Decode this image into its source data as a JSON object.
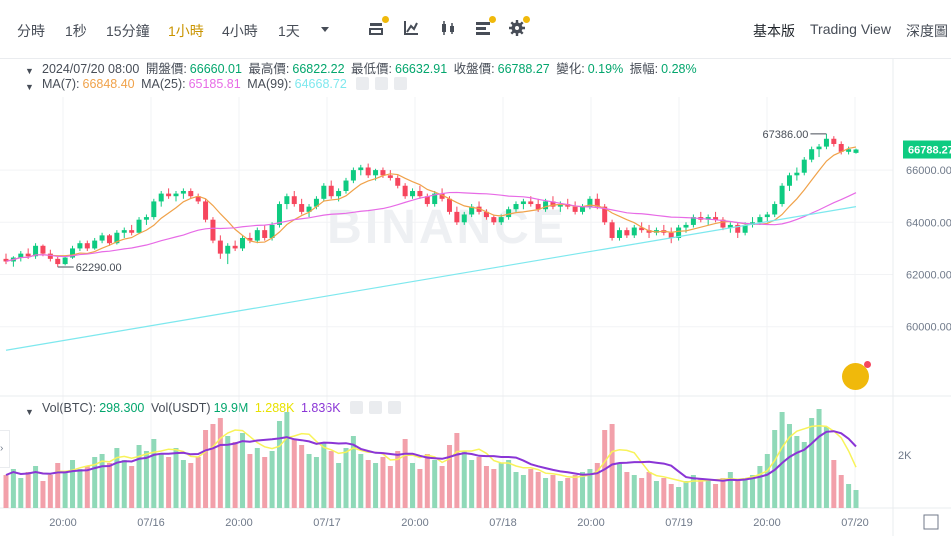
{
  "toolbar": {
    "intervals": [
      "分時",
      "1秒",
      "15分鐘",
      "1小時",
      "4小時",
      "1天"
    ],
    "active_interval": "1小時",
    "more_icon": "chevron-down-icon",
    "tools": [
      "indicator-icon",
      "line-chart-icon",
      "candle-icon",
      "settings-list-icon",
      "gear-icon"
    ],
    "views": [
      "基本版",
      "Trading View",
      "深度圖"
    ],
    "accent": "#f0b90b"
  },
  "ohlc": {
    "date": "2024/07/20 08:00",
    "open_label": "開盤價:",
    "open": "66660.01",
    "high_label": "最高價:",
    "high": "66822.22",
    "low_label": "最低價:",
    "low": "66632.91",
    "close_label": "收盤價:",
    "close": "66788.27",
    "change_label": "變化:",
    "change": "0.19%",
    "amp_label": "振幅:",
    "amp": "0.28%"
  },
  "ma": {
    "ma7_label": "MA(7):",
    "ma7": "66848.40",
    "ma25_label": "MA(25):",
    "ma25": "65185.81",
    "ma99_label": "MA(99):",
    "ma99": "64668.72"
  },
  "vol": {
    "btc_label": "Vol(BTC):",
    "btc": "298.300",
    "usdt_label": "Vol(USDT)",
    "usdt": "19.9M",
    "ma1": "1.288K",
    "ma2": "1.836K"
  },
  "watermark": "BINANCE",
  "colors": {
    "up": "#0ecb81",
    "down": "#f6465d",
    "ma7": "#f0a24a",
    "ma25": "#e76be6",
    "ma99": "#7ee8ee",
    "vol_ma1": "#f8f35a",
    "vol_ma2": "#8a35d6"
  },
  "chart_data": {
    "type": "candlestick",
    "price_axis": {
      "ticks": [
        60000,
        62000,
        64000,
        66000
      ],
      "tick_labels": [
        "60000.00",
        "62000.00",
        "64000.00",
        "66000.00"
      ],
      "range": [
        57500,
        68800
      ]
    },
    "time_axis": {
      "labels": [
        "20:00",
        "07/16",
        "20:00",
        "07/17",
        "20:00",
        "07/18",
        "20:00",
        "07/19",
        "20:00",
        "07/20"
      ]
    },
    "last_price": "66788.27",
    "high_marker": "67386.00",
    "low_marker": "62290.00",
    "candles": [
      [
        62600,
        62800,
        62400,
        62500
      ],
      [
        62500,
        62700,
        62300,
        62650
      ],
      [
        62650,
        62900,
        62500,
        62800
      ],
      [
        62800,
        63000,
        62600,
        62700
      ],
      [
        62700,
        63200,
        62600,
        63100
      ],
      [
        63100,
        63150,
        62700,
        62800
      ],
      [
        62800,
        62950,
        62500,
        62600
      ],
      [
        62600,
        62700,
        62290,
        62400
      ],
      [
        62400,
        62700,
        62350,
        62650
      ],
      [
        62650,
        63100,
        62600,
        63000
      ],
      [
        63000,
        63300,
        62900,
        63200
      ],
      [
        63200,
        63300,
        62900,
        63000
      ],
      [
        63000,
        63400,
        62950,
        63300
      ],
      [
        63300,
        63600,
        63200,
        63500
      ],
      [
        63500,
        63550,
        63100,
        63200
      ],
      [
        63200,
        63700,
        63150,
        63600
      ],
      [
        63600,
        63800,
        63400,
        63700
      ],
      [
        63700,
        63900,
        63500,
        63600
      ],
      [
        63600,
        64200,
        63550,
        64100
      ],
      [
        64100,
        64300,
        63900,
        64200
      ],
      [
        64200,
        64900,
        64100,
        64800
      ],
      [
        64800,
        65200,
        64600,
        65100
      ],
      [
        65100,
        65300,
        64900,
        65000
      ],
      [
        65000,
        65200,
        64800,
        65100
      ],
      [
        65100,
        65300,
        64900,
        65200
      ],
      [
        65200,
        65300,
        64900,
        65000
      ],
      [
        65000,
        65100,
        64700,
        64800
      ],
      [
        64800,
        64900,
        64000,
        64100
      ],
      [
        64100,
        64200,
        63200,
        63300
      ],
      [
        63300,
        63500,
        62600,
        62800
      ],
      [
        62800,
        63200,
        62400,
        63100
      ],
      [
        63100,
        63300,
        62900,
        63000
      ],
      [
        63000,
        63500,
        62900,
        63400
      ],
      [
        63400,
        63600,
        63200,
        63300
      ],
      [
        63300,
        63800,
        63200,
        63700
      ],
      [
        63700,
        63900,
        63300,
        63400
      ],
      [
        63400,
        64000,
        63300,
        63900
      ],
      [
        63900,
        64800,
        63800,
        64700
      ],
      [
        64700,
        65100,
        64500,
        65000
      ],
      [
        65000,
        65200,
        64600,
        64700
      ],
      [
        64700,
        64900,
        64300,
        64400
      ],
      [
        64400,
        64700,
        64200,
        64600
      ],
      [
        64600,
        65000,
        64500,
        64900
      ],
      [
        64900,
        65500,
        64800,
        65400
      ],
      [
        65400,
        65600,
        64900,
        65000
      ],
      [
        65000,
        65300,
        64800,
        65200
      ],
      [
        65200,
        65700,
        65100,
        65600
      ],
      [
        65600,
        66100,
        65500,
        66000
      ],
      [
        66000,
        66200,
        65800,
        66100
      ],
      [
        66100,
        66250,
        65700,
        65800
      ],
      [
        65800,
        66050,
        65600,
        66000
      ],
      [
        66000,
        66100,
        65700,
        65800
      ],
      [
        65800,
        66000,
        65600,
        65700
      ],
      [
        65700,
        65800,
        65300,
        65400
      ],
      [
        65400,
        65500,
        64900,
        65000
      ],
      [
        65000,
        65300,
        64900,
        65200
      ],
      [
        65200,
        65400,
        64900,
        65000
      ],
      [
        65000,
        65100,
        64600,
        64700
      ],
      [
        64700,
        65200,
        64600,
        65100
      ],
      [
        65100,
        65300,
        64800,
        64900
      ],
      [
        64900,
        65000,
        64300,
        64400
      ],
      [
        64400,
        64600,
        63900,
        64000
      ],
      [
        64000,
        64400,
        63900,
        64300
      ],
      [
        64300,
        64700,
        64200,
        64600
      ],
      [
        64600,
        64800,
        64300,
        64400
      ],
      [
        64400,
        64500,
        64100,
        64200
      ],
      [
        64200,
        64300,
        63900,
        64000
      ],
      [
        64000,
        64300,
        63900,
        64200
      ],
      [
        64200,
        64600,
        64100,
        64500
      ],
      [
        64500,
        64800,
        64400,
        64700
      ],
      [
        64700,
        64900,
        64500,
        64800
      ],
      [
        64800,
        65000,
        64600,
        64700
      ],
      [
        64700,
        64900,
        64400,
        64500
      ],
      [
        64500,
        64900,
        64400,
        64800
      ],
      [
        64800,
        65000,
        64500,
        64600
      ],
      [
        64600,
        64800,
        64400,
        64700
      ],
      [
        64700,
        64900,
        64500,
        64600
      ],
      [
        64600,
        64800,
        64300,
        64400
      ],
      [
        64400,
        64700,
        64300,
        64600
      ],
      [
        64600,
        65000,
        64500,
        64900
      ],
      [
        64900,
        65100,
        64500,
        64600
      ],
      [
        64600,
        64700,
        63900,
        64000
      ],
      [
        64000,
        64100,
        63300,
        63400
      ],
      [
        63400,
        63800,
        63300,
        63700
      ],
      [
        63700,
        63800,
        63400,
        63500
      ],
      [
        63500,
        63900,
        63400,
        63800
      ],
      [
        63800,
        64000,
        63600,
        63700
      ],
      [
        63700,
        63900,
        63400,
        63600
      ],
      [
        63600,
        63800,
        63500,
        63700
      ],
      [
        63700,
        63900,
        63500,
        63600
      ],
      [
        63600,
        63800,
        63200,
        63400
      ],
      [
        63400,
        63900,
        63300,
        63800
      ],
      [
        63800,
        64000,
        63600,
        63900
      ],
      [
        63900,
        64300,
        63800,
        64200
      ],
      [
        64200,
        64400,
        64000,
        64100
      ],
      [
        64100,
        64300,
        63900,
        64200
      ],
      [
        64200,
        64400,
        64000,
        64100
      ],
      [
        64100,
        64200,
        63700,
        63800
      ],
      [
        63800,
        64000,
        63600,
        63900
      ],
      [
        63900,
        64000,
        63400,
        63600
      ],
      [
        63600,
        64000,
        63500,
        63900
      ],
      [
        63900,
        64200,
        63800,
        64000
      ],
      [
        64000,
        64300,
        63900,
        64200
      ],
      [
        64200,
        64400,
        64000,
        64300
      ],
      [
        64300,
        64800,
        64200,
        64700
      ],
      [
        64700,
        65500,
        64600,
        65400
      ],
      [
        65400,
        65900,
        65200,
        65800
      ],
      [
        65800,
        66100,
        65600,
        65900
      ],
      [
        65900,
        66500,
        65800,
        66400
      ],
      [
        66400,
        66900,
        66300,
        66800
      ],
      [
        66800,
        67000,
        66500,
        66900
      ],
      [
        66900,
        67386,
        66800,
        67200
      ],
      [
        67200,
        67300,
        66900,
        67000
      ],
      [
        67000,
        67100,
        66600,
        66700
      ],
      [
        66700,
        66900,
        66600,
        66800
      ],
      [
        66660.01,
        66822.22,
        66632.91,
        66788.27
      ]
    ],
    "volumes": [
      1100,
      1300,
      1000,
      1200,
      1400,
      900,
      1100,
      1500,
      1200,
      1600,
      1300,
      1400,
      1700,
      1800,
      1500,
      2000,
      1600,
      1400,
      2100,
      1900,
      2300,
      1800,
      1700,
      2000,
      1600,
      1500,
      1700,
      2600,
      2800,
      3000,
      2400,
      2200,
      2500,
      1800,
      2000,
      1700,
      1900,
      2900,
      3200,
      2300,
      2100,
      1800,
      1700,
      2200,
      1900,
      1500,
      2000,
      2400,
      1800,
      1600,
      1500,
      1700,
      1400,
      1900,
      2300,
      1500,
      1300,
      1800,
      1600,
      1400,
      2100,
      2500,
      1900,
      1600,
      1700,
      1400,
      1300,
      1500,
      1600,
      1200,
      1100,
      1300,
      1200,
      1000,
      1100,
      900,
      1000,
      1100,
      1200,
      1300,
      1500,
      2600,
      2800,
      1500,
      1200,
      1100,
      1000,
      1200,
      900,
      1000,
      800,
      700,
      900,
      1100,
      1000,
      900,
      800,
      1000,
      1200,
      900,
      1000,
      1100,
      1400,
      1800,
      2600,
      3200,
      2800,
      2400,
      2200,
      3000,
      3300,
      2700,
      1600,
      1100,
      800,
      600
    ]
  }
}
